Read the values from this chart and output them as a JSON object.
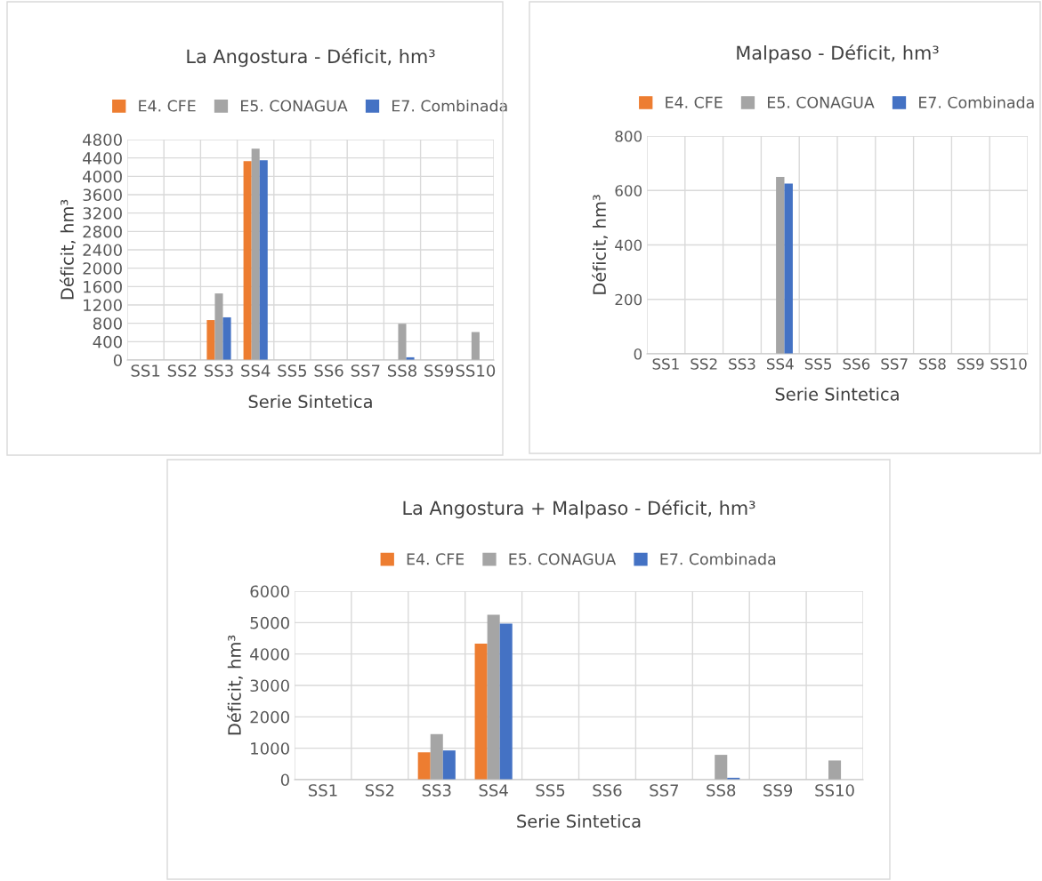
{
  "chart_data": [
    {
      "type": "bar",
      "title": "La Angostura - Déficit, hm³",
      "xlabel": "Serie Sintetica",
      "ylabel": "Déficit, hm³",
      "categories": [
        "SS1",
        "SS2",
        "SS3",
        "SS4",
        "SS5",
        "SS6",
        "SS7",
        "SS8",
        "SS9",
        "SS10"
      ],
      "ylim": [
        0,
        4800
      ],
      "yticks": [
        0,
        400,
        800,
        1200,
        1600,
        2000,
        2400,
        2800,
        3200,
        3600,
        4000,
        4400,
        4800
      ],
      "grid": true,
      "legend": "top",
      "series": [
        {
          "name": "E4. CFE",
          "color": "#ed7d31",
          "values": [
            0,
            0,
            870,
            4330,
            0,
            0,
            0,
            0,
            0,
            0
          ]
        },
        {
          "name": "E5. CONAGUA",
          "color": "#a5a5a5",
          "values": [
            0,
            0,
            1450,
            4600,
            0,
            0,
            0,
            790,
            0,
            610
          ]
        },
        {
          "name": "E7. Combinada",
          "color": "#4472c4",
          "values": [
            0,
            0,
            930,
            4350,
            0,
            0,
            0,
            60,
            0,
            0
          ]
        }
      ]
    },
    {
      "type": "bar",
      "title": "Malpaso - Déficit, hm³",
      "xlabel": "Serie Sintetica",
      "ylabel": "Déficit, hm³",
      "categories": [
        "SS1",
        "SS2",
        "SS3",
        "SS4",
        "SS5",
        "SS6",
        "SS7",
        "SS8",
        "SS9",
        "SS10"
      ],
      "ylim": [
        0,
        800
      ],
      "yticks": [
        0,
        200,
        400,
        600,
        800
      ],
      "grid": true,
      "legend": "top",
      "series": [
        {
          "name": "E4. CFE",
          "color": "#ed7d31",
          "values": [
            0,
            0,
            0,
            0,
            0,
            0,
            0,
            0,
            0,
            0
          ]
        },
        {
          "name": "E5. CONAGUA",
          "color": "#a5a5a5",
          "values": [
            0,
            0,
            0,
            650,
            0,
            0,
            0,
            0,
            0,
            0
          ]
        },
        {
          "name": "E7. Combinada",
          "color": "#4472c4",
          "values": [
            0,
            0,
            0,
            625,
            0,
            0,
            0,
            0,
            0,
            0
          ]
        }
      ]
    },
    {
      "type": "bar",
      "title": "La Angostura + Malpaso - Déficit, hm³",
      "xlabel": "Serie Sintetica",
      "ylabel": "Déficit, hm³",
      "categories": [
        "SS1",
        "SS2",
        "SS3",
        "SS4",
        "SS5",
        "SS6",
        "SS7",
        "SS8",
        "SS9",
        "SS10"
      ],
      "ylim": [
        0,
        6000
      ],
      "yticks": [
        0,
        1000,
        2000,
        3000,
        4000,
        5000,
        6000
      ],
      "grid": true,
      "legend": "top",
      "series": [
        {
          "name": "E4. CFE",
          "color": "#ed7d31",
          "values": [
            0,
            0,
            870,
            4330,
            0,
            0,
            0,
            0,
            0,
            0
          ]
        },
        {
          "name": "E5. CONAGUA",
          "color": "#a5a5a5",
          "values": [
            0,
            0,
            1450,
            5250,
            0,
            0,
            0,
            790,
            0,
            610
          ]
        },
        {
          "name": "E7. Combinada",
          "color": "#4472c4",
          "values": [
            0,
            0,
            930,
            4970,
            0,
            0,
            0,
            60,
            0,
            0
          ]
        }
      ]
    }
  ]
}
